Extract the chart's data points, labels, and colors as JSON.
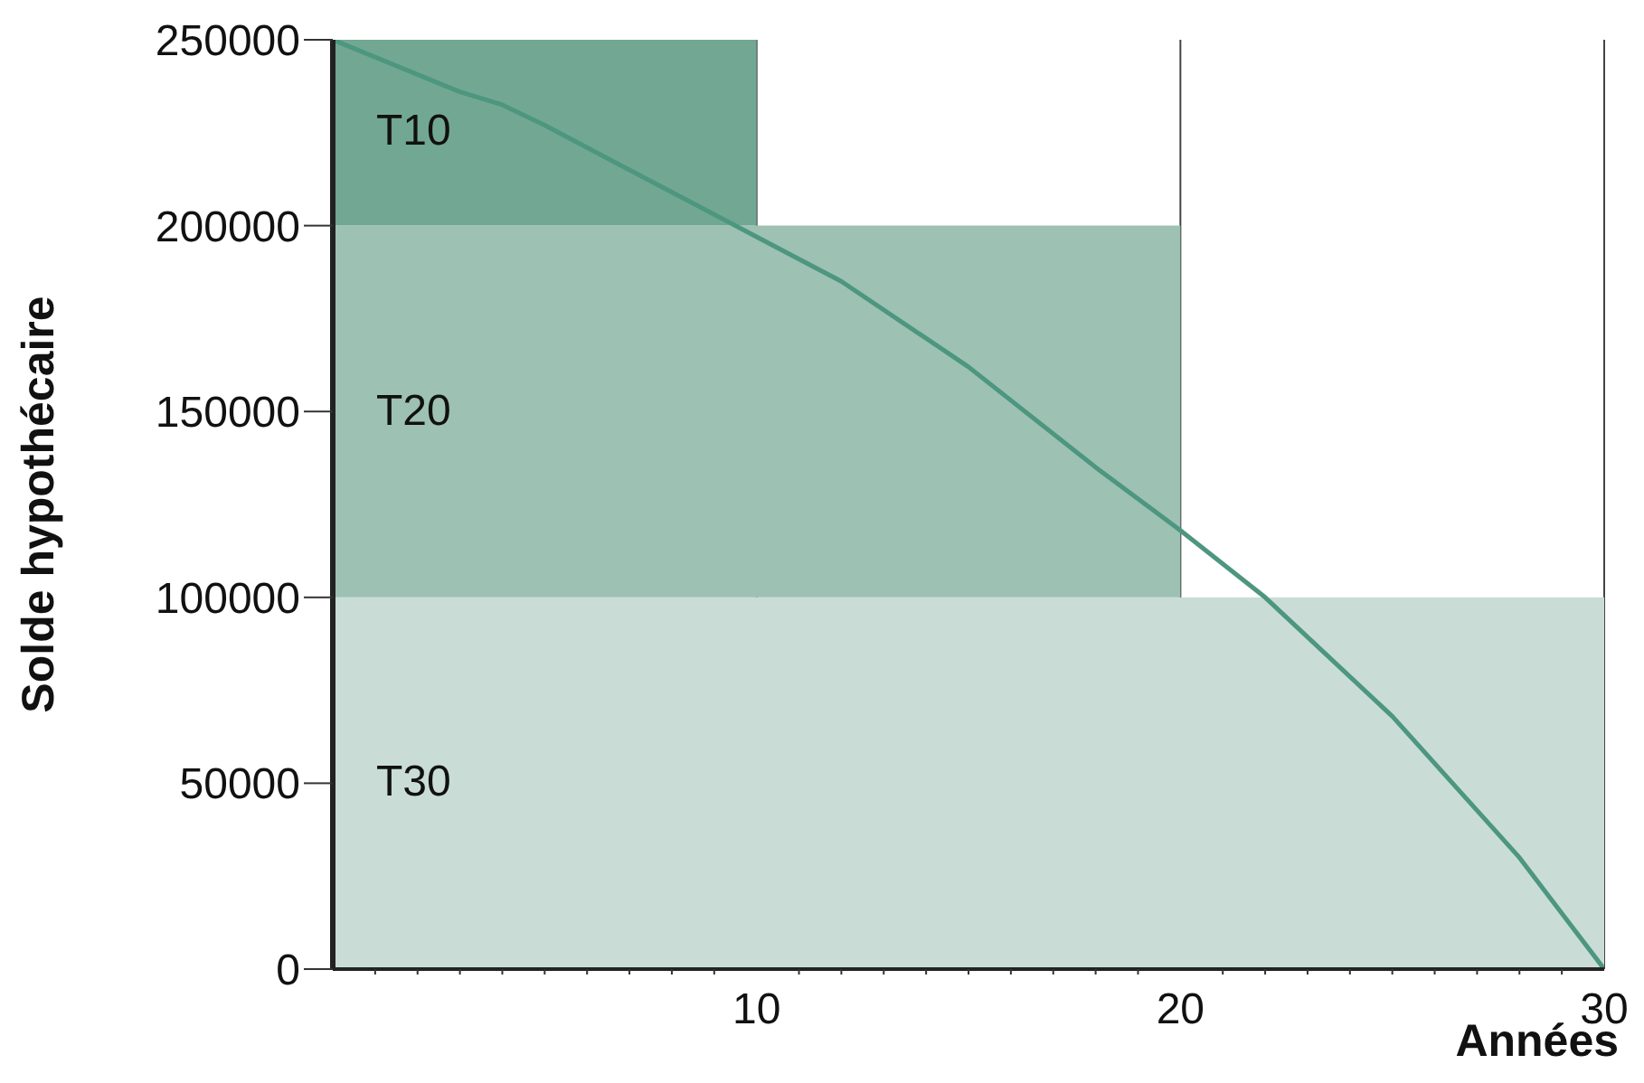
{
  "chart_data": {
    "type": "area",
    "xlabel": "Années",
    "ylabel": "Solde hypothécaire",
    "stacked": true,
    "series": [
      {
        "name": "T30",
        "color": "#c9ddd6",
        "x": [
          0,
          30
        ],
        "values": [
          100000,
          100000
        ]
      },
      {
        "name": "T20",
        "color": "#9dc1b3",
        "x": [
          0,
          20
        ],
        "values": [
          100000,
          100000
        ]
      },
      {
        "name": "T10",
        "color": "#72a893",
        "x": [
          0,
          10
        ],
        "values": [
          50000,
          50000
        ]
      },
      {
        "type": "line",
        "color": "#4d9680",
        "x": [
          0,
          3,
          4,
          5,
          7,
          10,
          12,
          15,
          18,
          20,
          22,
          25,
          28,
          30
        ],
        "values": [
          250000,
          236000,
          232500,
          227000,
          215000,
          197000,
          185000,
          162000,
          135000,
          118000,
          100000,
          68000,
          30000,
          0
        ]
      }
    ],
    "xlim": [
      0,
      30
    ],
    "xticks": [
      {
        "value": 1,
        "label": null
      },
      {
        "value": 2,
        "label": null
      },
      {
        "value": 3,
        "label": null
      },
      {
        "value": 4,
        "label": null
      },
      {
        "value": 5,
        "label": null
      },
      {
        "value": 6,
        "label": null
      },
      {
        "value": 7,
        "label": null
      },
      {
        "value": 8,
        "label": null
      },
      {
        "value": 9,
        "label": null
      },
      10,
      {
        "value": 11,
        "label": null
      },
      {
        "value": 12,
        "label": null
      },
      {
        "value": 13,
        "label": null
      },
      {
        "value": 14,
        "label": null
      },
      {
        "value": 15,
        "label": null
      },
      {
        "value": 16,
        "label": null
      },
      {
        "value": 17,
        "label": null
      },
      {
        "value": 18,
        "label": null
      },
      {
        "value": 19,
        "label": null
      },
      20,
      {
        "value": 21,
        "label": null
      },
      {
        "value": 22,
        "label": null
      },
      {
        "value": 23,
        "label": null
      },
      {
        "value": 24,
        "label": null
      },
      {
        "value": 25,
        "label": null
      },
      {
        "value": 26,
        "label": null
      },
      {
        "value": 27,
        "label": null
      },
      {
        "value": 28,
        "label": null
      },
      {
        "value": 29,
        "label": null
      },
      30
    ],
    "ylim": [
      0,
      250000
    ],
    "yticks": [
      0,
      50000,
      100000,
      150000,
      200000,
      250000
    ],
    "grid": "x",
    "marker": "none",
    "line_style": "solid"
  }
}
